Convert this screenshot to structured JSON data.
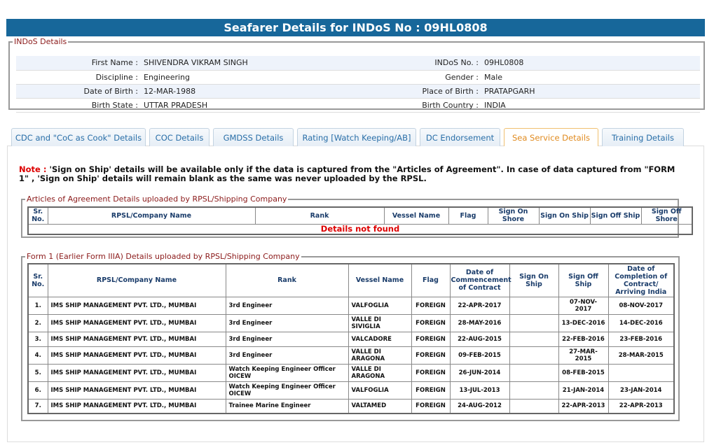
{
  "header": {
    "title": "Seafarer Details for INDoS No : 09HL0808"
  },
  "indos": {
    "legend": "INDoS Details",
    "rows": [
      [
        "First Name :",
        "SHIVENDRA VIKRAM SINGH",
        "INDoS No. :",
        "09HL0808"
      ],
      [
        "Discipline :",
        "Engineering",
        "Gender :",
        "Male"
      ],
      [
        "Date of Birth :",
        "12-MAR-1988",
        "Place of Birth :",
        "PRATAPGARH"
      ],
      [
        "Birth State :",
        "UTTAR PRADESH",
        "Birth Country :",
        "INDIA"
      ]
    ]
  },
  "tabs": {
    "items": [
      "CDC and \"CoC as Cook\" Details",
      "COC Details",
      "GMDSS Details",
      "Rating [Watch Keeping/AB]",
      "DC Endorsement",
      "Sea Service Details",
      "Training Details"
    ],
    "active": 5
  },
  "note": {
    "label": "Note :",
    "text": "'Sign on Ship' details will be available only if the data is captured from the \"Articles of Agreement\". In case of data captured from \"FORM 1\" , 'Sign on Ship' details will remain blank as the same was never uploaded by the RPSL."
  },
  "articles": {
    "legend": "Articles of Agreement Details uploaded by RPSL/Shipping Company",
    "headers": [
      "Sr. No.",
      "RPSL/Company Name",
      "Rank",
      "Vessel Name",
      "Flag",
      "Sign On Shore",
      "Sign On Ship",
      "Sign Off Ship",
      "Sign Off Shore"
    ],
    "empty": "Details not found"
  },
  "form1": {
    "legend": "Form 1 (Earlier Form IIIA) Details uploaded by RPSL/Shipping Company",
    "headers": [
      "Sr. No.",
      "RPSL/Company Name",
      "Rank",
      "Vessel Name",
      "Flag",
      "Date of Commencement of Contract",
      "Sign On Ship",
      "Sign Off Ship",
      "Date of Completion of Contract/ Arriving India"
    ],
    "rows": [
      [
        "1.",
        "IMS SHIP MANAGEMENT PVT. LTD., MUMBAI",
        "3rd Engineer",
        "VALFOGLIA",
        "FOREIGN",
        "22-APR-2017",
        null,
        "07-NOV-2017",
        "08-NOV-2017"
      ],
      [
        "2.",
        "IMS SHIP MANAGEMENT PVT. LTD., MUMBAI",
        "3rd Engineer",
        "VALLE DI SIVIGLIA",
        "FOREIGN",
        "28-MAY-2016",
        null,
        "13-DEC-2016",
        "14-DEC-2016"
      ],
      [
        "3.",
        "IMS SHIP MANAGEMENT PVT. LTD., MUMBAI",
        "3rd Engineer",
        "VALCADORE",
        "FOREIGN",
        "22-AUG-2015",
        null,
        "22-FEB-2016",
        "23-FEB-2016"
      ],
      [
        "4.",
        "IMS SHIP MANAGEMENT PVT. LTD., MUMBAI",
        "3rd Engineer",
        "VALLE DI ARAGONA",
        "FOREIGN",
        "09-FEB-2015",
        null,
        "27-MAR-2015",
        "28-MAR-2015"
      ],
      [
        "5.",
        "IMS SHIP MANAGEMENT PVT. LTD., MUMBAI",
        "Watch Keeping Engineer Officer OICEW",
        "VALLE DI ARAGONA",
        "FOREIGN",
        "26-JUN-2014",
        null,
        "08-FEB-2015",
        null
      ],
      [
        "6.",
        "IMS SHIP MANAGEMENT PVT. LTD., MUMBAI",
        "Watch Keeping Engineer Officer OICEW",
        "VALFOGLIA",
        "FOREIGN",
        "13-JUL-2013",
        null,
        "21-JAN-2014",
        "23-JAN-2014"
      ],
      [
        "7.",
        "IMS SHIP MANAGEMENT PVT. LTD., MUMBAI",
        "Trainee Marine Engineer",
        "VALTAMED",
        "FOREIGN",
        "24-AUG-2012",
        null,
        "22-APR-2013",
        "22-APR-2013"
      ]
    ]
  }
}
